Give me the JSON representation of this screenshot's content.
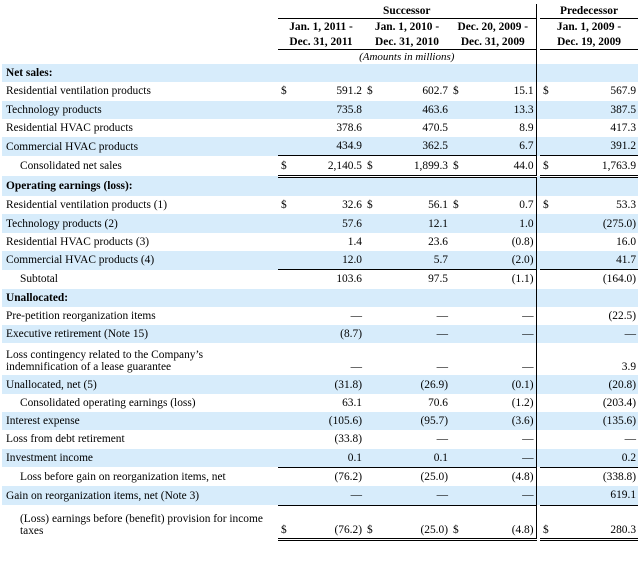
{
  "headers": {
    "successor": "Successor",
    "predecessor": "Predecessor",
    "cols": [
      {
        "line1": "Jan. 1, 2011 -",
        "line2": "Dec. 31, 2011"
      },
      {
        "line1": "Jan. 1, 2010 -",
        "line2": "Dec. 31, 2010"
      },
      {
        "line1": "Dec. 20, 2009 -",
        "line2": "Dec. 31, 2009"
      },
      {
        "line1": "Jan. 1, 2009 -",
        "line2": "Dec. 19, 2009"
      }
    ],
    "units": "(Amounts in millions)"
  },
  "rows": [
    {
      "label": "Net sales:",
      "type": "section"
    },
    {
      "label": "Residential ventilation products",
      "values": [
        "591.2",
        "602.7",
        "15.1",
        "567.9"
      ],
      "currency": true
    },
    {
      "label": "Technology products",
      "values": [
        "735.8",
        "463.6",
        "13.3",
        "387.5"
      ]
    },
    {
      "label": "Residential HVAC products",
      "values": [
        "378.6",
        "470.5",
        "8.9",
        "417.3"
      ]
    },
    {
      "label": "Commercial HVAC products",
      "values": [
        "434.9",
        "362.5",
        "6.7",
        "391.2"
      ]
    },
    {
      "label": "Consolidated net sales",
      "values": [
        "2,140.5",
        "1,899.3",
        "44.0",
        "1,763.9"
      ],
      "currency": true,
      "indent": true,
      "style": "total"
    },
    {
      "label": "Operating earnings (loss):",
      "type": "section"
    },
    {
      "label": "Residential ventilation products (1)",
      "values": [
        "32.6",
        "56.1",
        "0.7",
        "53.3"
      ],
      "currency": true
    },
    {
      "label": "Technology products (2)",
      "values": [
        "57.6",
        "12.1",
        "1.0",
        "(275.0)"
      ]
    },
    {
      "label": "Residential HVAC products (3)",
      "values": [
        "1.4",
        "23.6",
        "(0.8)",
        "16.0"
      ]
    },
    {
      "label": "Commercial HVAC products (4)",
      "values": [
        "12.0",
        "5.7",
        "(2.0)",
        "41.7"
      ]
    },
    {
      "label": "Subtotal",
      "values": [
        "103.6",
        "97.5",
        "(1.1)",
        "(164.0)"
      ],
      "indent": true,
      "style": "sum"
    },
    {
      "label": "Unallocated:",
      "type": "section"
    },
    {
      "label": "Pre-petition reorganization items",
      "values": [
        "—",
        "—",
        "—",
        "(22.5)"
      ]
    },
    {
      "label": "Executive retirement (Note 15)",
      "values": [
        "(8.7)",
        "—",
        "—",
        "—"
      ]
    },
    {
      "label": "Loss contingency related to the Company’s indemnification of a lease guarantee",
      "values": [
        "—",
        "—",
        "—",
        "3.9"
      ],
      "tall": true
    },
    {
      "label": "Unallocated, net (5)",
      "values": [
        "(31.8)",
        "(26.9)",
        "(0.1)",
        "(20.8)"
      ]
    },
    {
      "label": "Consolidated operating earnings (loss)",
      "values": [
        "63.1",
        "70.6",
        "(1.2)",
        "(203.4)"
      ],
      "indent": true
    },
    {
      "label": "Interest expense",
      "values": [
        "(105.6)",
        "(95.7)",
        "(3.6)",
        "(135.6)"
      ]
    },
    {
      "label": "Loss from debt retirement",
      "values": [
        "(33.8)",
        "—",
        "—",
        "—"
      ]
    },
    {
      "label": "Investment income",
      "values": [
        "0.1",
        "0.1",
        "—",
        "0.2"
      ]
    },
    {
      "label": "Loss before gain on reorganization items, net",
      "values": [
        "(76.2)",
        "(25.0)",
        "(4.8)",
        "(338.8)"
      ],
      "indent": true,
      "style": "sum"
    },
    {
      "label": "Gain on reorganization items, net (Note 3)",
      "values": [
        "—",
        "—",
        "—",
        "619.1"
      ]
    },
    {
      "label": "(Loss) earnings before (benefit) provision for income taxes",
      "values": [
        "(76.2)",
        "(25.0)",
        "(4.8)",
        "280.3"
      ],
      "currency": true,
      "indent": true,
      "tall": true,
      "style": "total"
    }
  ],
  "currency_symbol": "$",
  "colors": {
    "shade": "#d7ecfb",
    "text": "#000000"
  }
}
